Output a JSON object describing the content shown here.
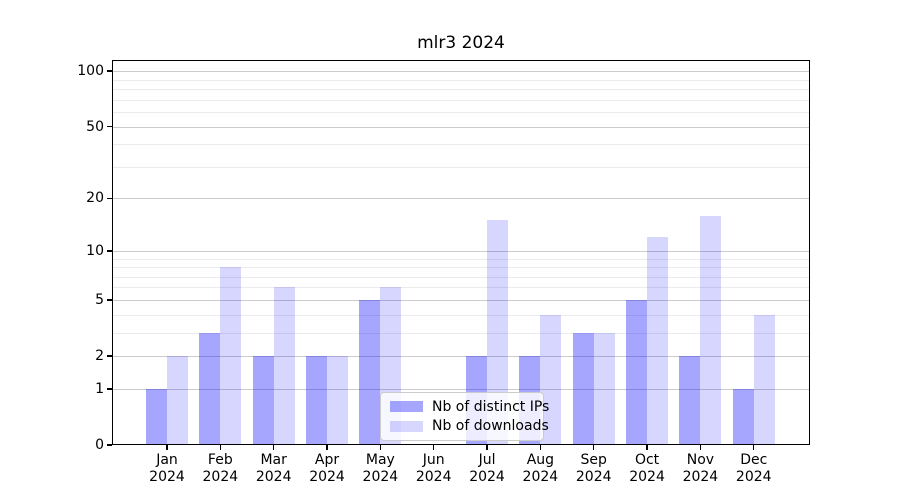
{
  "title": "mlr3 2024",
  "colors": {
    "distinct_ips_fill": "rgba(0,0,255,0.35)",
    "downloads_fill": "rgba(0,0,255,0.16)",
    "major_grid": "#cbcbcb",
    "minor_grid": "#ebebeb",
    "axis": "#000000",
    "legend_border": "#cccccc"
  },
  "chart_data": {
    "type": "bar",
    "title": "mlr3 2024",
    "categories": [
      "Jan 2024",
      "Feb 2024",
      "Mar 2024",
      "Apr 2024",
      "May 2024",
      "Jun 2024",
      "Jul 2024",
      "Aug 2024",
      "Sep 2024",
      "Oct 2024",
      "Nov 2024",
      "Dec 2024"
    ],
    "series": [
      {
        "name": "Nb of distinct IPs",
        "values": [
          1,
          3,
          2,
          2,
          5,
          0,
          2,
          2,
          3,
          5,
          2,
          1
        ]
      },
      {
        "name": "Nb of downloads",
        "values": [
          2,
          8,
          6,
          2,
          6,
          0,
          15,
          4,
          3,
          12,
          16,
          4
        ]
      }
    ],
    "xlabel": "",
    "ylabel": "",
    "yticks": [
      0,
      1,
      2,
      5,
      10,
      20,
      50,
      100
    ],
    "minor_gridlines": [
      3,
      4,
      6,
      7,
      8,
      9,
      30,
      40,
      60,
      70,
      80,
      90
    ],
    "scale": "log10(1+x)",
    "ylim": [
      0,
      115
    ],
    "grid": true,
    "legend_position": "lower center"
  }
}
